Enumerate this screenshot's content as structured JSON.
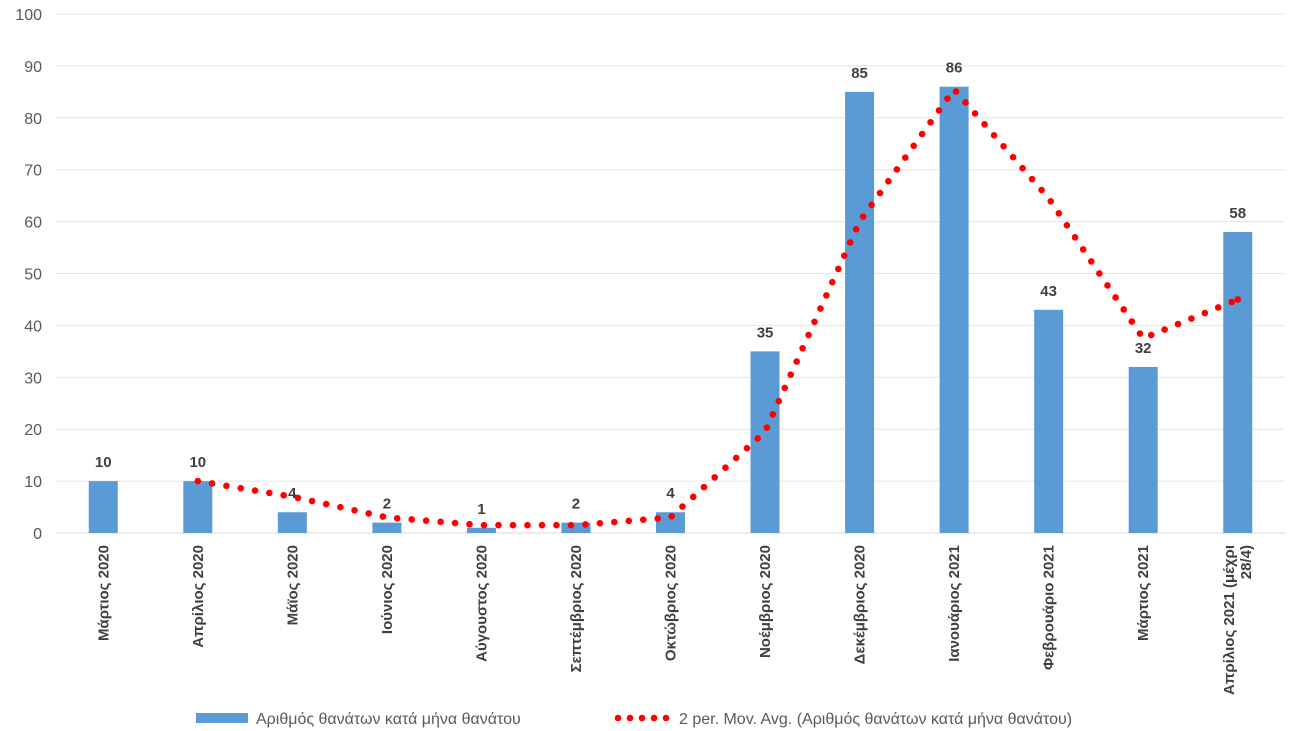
{
  "chart_data": {
    "type": "bar",
    "categories": [
      [
        "Μάρτιος 2020"
      ],
      [
        "Απρίλιος 2020"
      ],
      [
        "Μάϊος 2020"
      ],
      [
        "Ιούνιος 2020"
      ],
      [
        "Αύγουστος 2020"
      ],
      [
        "Σεπτέμβριος 2020"
      ],
      [
        "Οκτώβριος 2020"
      ],
      [
        "Νοέμβριος 2020"
      ],
      [
        "Δεκέμβριος 2020"
      ],
      [
        "Ιανουάριος 2021"
      ],
      [
        "Φεβρουάριο 2021"
      ],
      [
        "Μάρτιος 2021"
      ],
      [
        "Απρίλιος 2021 (μέχρι",
        "28/4)"
      ]
    ],
    "series": [
      {
        "name": "Αριθμός θανάτων κατά μήνα θανάτου",
        "type": "bar",
        "color": "#5B9BD5",
        "values": [
          10,
          10,
          4,
          2,
          1,
          2,
          4,
          35,
          85,
          86,
          43,
          32,
          58
        ],
        "data_labels": true
      },
      {
        "name": "2 per. Mov. Avg. (Αριθμός θανάτων κατά μήνα θανάτου)",
        "type": "line",
        "style": "dotted",
        "color": "#FF0000",
        "values": [
          null,
          10,
          7,
          3,
          1.5,
          1.5,
          3,
          19.5,
          60,
          85.5,
          64.5,
          37.5,
          45
        ]
      }
    ],
    "yticks": [
      0,
      10,
      20,
      30,
      40,
      50,
      60,
      70,
      80,
      90,
      100
    ],
    "ylim": [
      0,
      100
    ],
    "grid": true,
    "legend": "bottom"
  }
}
